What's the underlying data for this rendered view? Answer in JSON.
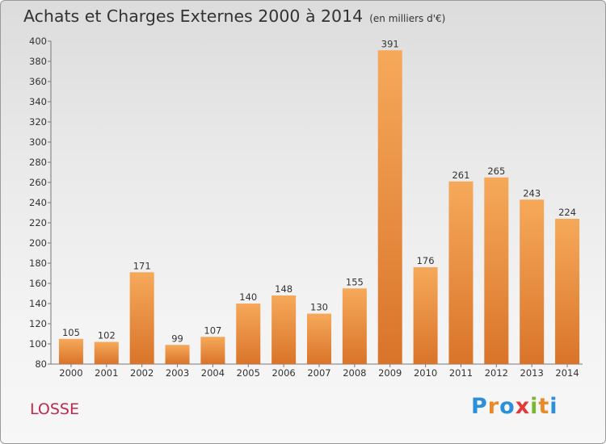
{
  "title": "Achats et Charges Externes 2000 à 2014",
  "unit_note": "(en milliers d'€)",
  "commune": "LOSSE",
  "brand": {
    "letters": [
      "P",
      "r",
      "o",
      "x",
      "i",
      "t",
      "i"
    ],
    "colors": [
      "#2b90d9",
      "#e8892a",
      "#2b90d9",
      "#e23a3a",
      "#7cb82f",
      "#e8892a",
      "#2b90d9"
    ]
  },
  "colors": {
    "bar_light": "#f6a95a",
    "bar_dark": "#d9742a",
    "title": "#333333",
    "commune": "#c0294f"
  },
  "chart_data": {
    "type": "bar",
    "title": "Achats et Charges Externes 2000 à 2014",
    "subtitle": "(en milliers d'€)",
    "categories": [
      "2000",
      "2001",
      "2002",
      "2003",
      "2004",
      "2005",
      "2006",
      "2007",
      "2008",
      "2009",
      "2010",
      "2011",
      "2012",
      "2013",
      "2014"
    ],
    "values": [
      105,
      102,
      171,
      99,
      107,
      140,
      148,
      130,
      155,
      391,
      176,
      261,
      265,
      243,
      224
    ],
    "ylim": [
      80,
      400
    ],
    "yticks": [
      80,
      100,
      120,
      140,
      160,
      180,
      200,
      220,
      240,
      260,
      280,
      300,
      320,
      340,
      360,
      380,
      400
    ],
    "grid": false,
    "data_labels": true
  }
}
